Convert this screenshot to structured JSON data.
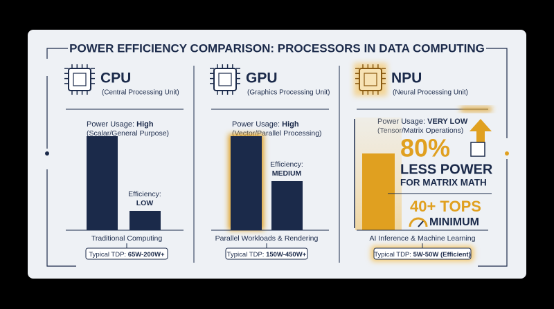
{
  "title": "POWER EFFICIENCY COMPARISON: PROCESSORS IN DATA COMPUTING",
  "panels": [
    {
      "name": "CPU",
      "subtitle": "(Central Processing Unit)",
      "power_label": "Power Usage:",
      "power_level": "High",
      "power_note": "(Scalar/General Purpose)",
      "efficiency_label": "Efficiency:",
      "efficiency_level": "LOW",
      "workload": "Traditional Computing",
      "tdp_label": "Typical TDP:",
      "tdp": "65W-200W+"
    },
    {
      "name": "GPU",
      "subtitle": "(Graphics Processing Unit)",
      "power_label": "Power Usage:",
      "power_level": "High",
      "power_note": "(Vector/Parallel Processing)",
      "efficiency_label": "Efficiency:",
      "efficiency_level": "MEDIUM",
      "workload": "Parallel Workloads & Rendering",
      "tdp_label": "Typical TDP:",
      "tdp": "150W-450W+"
    },
    {
      "name": "NPU",
      "subtitle": "(Neural Processing Unit)",
      "power_label": "Power Usage:",
      "power_level": "VERY LOW",
      "power_note": "(Tensor/Matrix Operations)",
      "workload": "AI Inference & Machine Learning",
      "tdp_label": "Typical TDP:",
      "tdp": "5W-50W (Efficient)"
    }
  ],
  "npu_callout": {
    "headline": "80%",
    "line1": "LESS POWER",
    "line2": "FOR MATRIX MATH",
    "tops": "40+ TOPS",
    "tops_note": "MINIMUM"
  }
}
